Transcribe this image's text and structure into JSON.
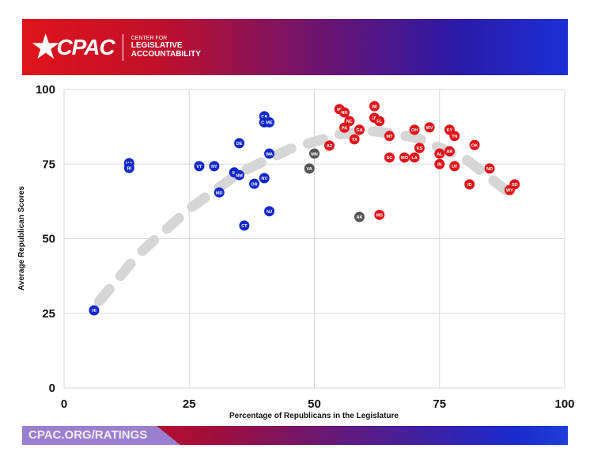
{
  "header": {
    "logo_text": "CPAC",
    "org_line1": "CENTER FOR",
    "org_line2": "LEGISLATIVE",
    "org_line3": "ACCOUNTABILITY"
  },
  "footer": {
    "url": "CPAC.ORG/RATINGS"
  },
  "colors": {
    "dem": "#1428c8",
    "rep": "#e0141b",
    "split": "#555555",
    "trend": "#d6d6d6"
  },
  "chart_data": {
    "type": "scatter",
    "xlabel": "Percentage of Republicans in the Legislature",
    "ylabel": "Average Republican Scores",
    "xlim": [
      0,
      100
    ],
    "ylim": [
      0,
      100
    ],
    "xticks": [
      "0",
      "25",
      "50",
      "75",
      "100"
    ],
    "yticks": [
      "0",
      "25",
      "50",
      "75",
      "100"
    ],
    "grid": true,
    "trendline": [
      [
        7,
        29
      ],
      [
        15,
        45
      ],
      [
        25,
        60
      ],
      [
        35,
        72
      ],
      [
        45,
        80
      ],
      [
        55,
        85
      ],
      [
        62,
        86
      ],
      [
        70,
        84
      ],
      [
        80,
        77
      ],
      [
        90,
        64
      ]
    ],
    "points": [
      {
        "label": "HI",
        "x": 6,
        "y": 26,
        "party": "dem"
      },
      {
        "label": "MA",
        "x": 13,
        "y": 75.3,
        "party": "dem"
      },
      {
        "label": "RI",
        "x": 13,
        "y": 73.7,
        "party": "dem"
      },
      {
        "label": "VT",
        "x": 27,
        "y": 74.3,
        "party": "dem"
      },
      {
        "label": "NY",
        "x": 30,
        "y": 74.3,
        "party": "dem"
      },
      {
        "label": "DE",
        "x": 35,
        "y": 82,
        "party": "dem"
      },
      {
        "label": "CA",
        "x": 40,
        "y": 91,
        "party": "dem"
      },
      {
        "label": "CO",
        "x": 40,
        "y": 89,
        "party": "dem"
      },
      {
        "label": "ME",
        "x": 41,
        "y": 89,
        "party": "dem"
      },
      {
        "label": "WA",
        "x": 41,
        "y": 78.5,
        "party": "dem"
      },
      {
        "label": "IL",
        "x": 34,
        "y": 72.2,
        "party": "dem"
      },
      {
        "label": "NM",
        "x": 35,
        "y": 71.3,
        "party": "dem"
      },
      {
        "label": "MD",
        "x": 31,
        "y": 65.5,
        "party": "dem"
      },
      {
        "label": "OR",
        "x": 38,
        "y": 68.4,
        "party": "dem"
      },
      {
        "label": "NV",
        "x": 40,
        "y": 70.3,
        "party": "dem"
      },
      {
        "label": "NJ",
        "x": 41,
        "y": 59.2,
        "party": "dem"
      },
      {
        "label": "CT",
        "x": 36,
        "y": 54.4,
        "party": "dem"
      },
      {
        "label": "MN",
        "x": 50,
        "y": 78.5,
        "party": "split"
      },
      {
        "label": "VA",
        "x": 49,
        "y": 73.5,
        "party": "split"
      },
      {
        "label": "AK",
        "x": 59,
        "y": 57.3,
        "party": "split"
      },
      {
        "label": "AZ",
        "x": 53,
        "y": 81.2,
        "party": "rep"
      },
      {
        "label": "MI",
        "x": 55,
        "y": 93.4,
        "party": "rep"
      },
      {
        "label": "NH",
        "x": 56,
        "y": 92.3,
        "party": "rep"
      },
      {
        "label": "NC",
        "x": 57,
        "y": 89.4,
        "party": "rep"
      },
      {
        "label": "PA",
        "x": 56,
        "y": 87.2,
        "party": "rep"
      },
      {
        "label": "GA",
        "x": 59,
        "y": 86.5,
        "party": "rep"
      },
      {
        "label": "TX",
        "x": 58,
        "y": 83.3,
        "party": "rep"
      },
      {
        "label": "WI",
        "x": 62,
        "y": 94.4,
        "party": "rep"
      },
      {
        "label": "IA",
        "x": 62,
        "y": 90.5,
        "party": "rep"
      },
      {
        "label": "FL",
        "x": 63,
        "y": 89.4,
        "party": "rep"
      },
      {
        "label": "MT",
        "x": 65,
        "y": 84.4,
        "party": "rep"
      },
      {
        "label": "SC",
        "x": 65,
        "y": 77.2,
        "party": "rep"
      },
      {
        "label": "MO",
        "x": 68,
        "y": 77.2,
        "party": "rep"
      },
      {
        "label": "LA",
        "x": 70,
        "y": 77.2,
        "party": "rep"
      },
      {
        "label": "KS",
        "x": 71,
        "y": 80.4,
        "party": "rep"
      },
      {
        "label": "OH",
        "x": 70,
        "y": 86.5,
        "party": "rep"
      },
      {
        "label": "WV",
        "x": 73,
        "y": 87.3,
        "party": "rep"
      },
      {
        "label": "MS",
        "x": 63,
        "y": 58,
        "party": "rep"
      },
      {
        "label": "KY",
        "x": 77,
        "y": 86.5,
        "party": "rep"
      },
      {
        "label": "TN",
        "x": 78,
        "y": 84.4,
        "party": "rep"
      },
      {
        "label": "AL",
        "x": 75,
        "y": 78.5,
        "party": "rep"
      },
      {
        "label": "AR",
        "x": 77,
        "y": 79.3,
        "party": "rep"
      },
      {
        "label": "IN",
        "x": 75,
        "y": 75,
        "party": "rep"
      },
      {
        "label": "UT",
        "x": 78,
        "y": 74.3,
        "party": "rep"
      },
      {
        "label": "OK",
        "x": 82,
        "y": 81.4,
        "party": "rep"
      },
      {
        "label": "ID",
        "x": 81,
        "y": 68.2,
        "party": "rep"
      },
      {
        "label": "ND",
        "x": 85,
        "y": 73.5,
        "party": "rep"
      },
      {
        "label": "SD",
        "x": 90,
        "y": 68.2,
        "party": "rep"
      },
      {
        "label": "WY",
        "x": 89,
        "y": 66.3,
        "party": "rep"
      }
    ]
  }
}
